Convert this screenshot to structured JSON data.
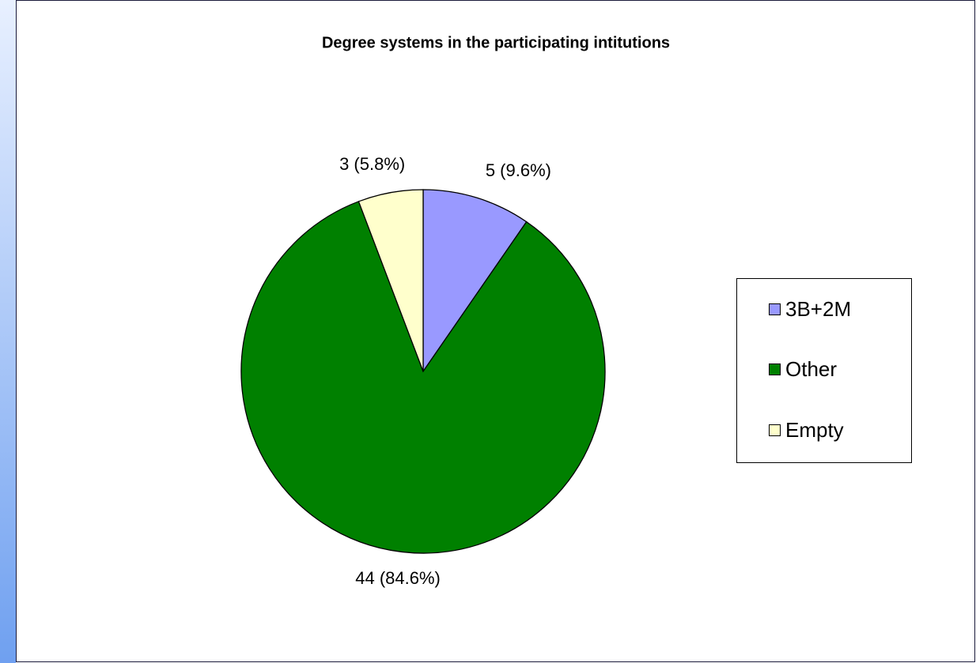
{
  "chart_data": {
    "type": "pie",
    "title": "Degree systems in the participating intitutions",
    "categories": [
      "3B+2M",
      "Other",
      "Empty"
    ],
    "values": [
      5,
      44,
      3
    ],
    "value_labels": [
      "5 (9.6%)",
      "44 (84.6%)",
      "3 (5.8%)"
    ],
    "colors": [
      "#9999ff",
      "#008000",
      "#ffffcc"
    ],
    "legend": "right"
  }
}
